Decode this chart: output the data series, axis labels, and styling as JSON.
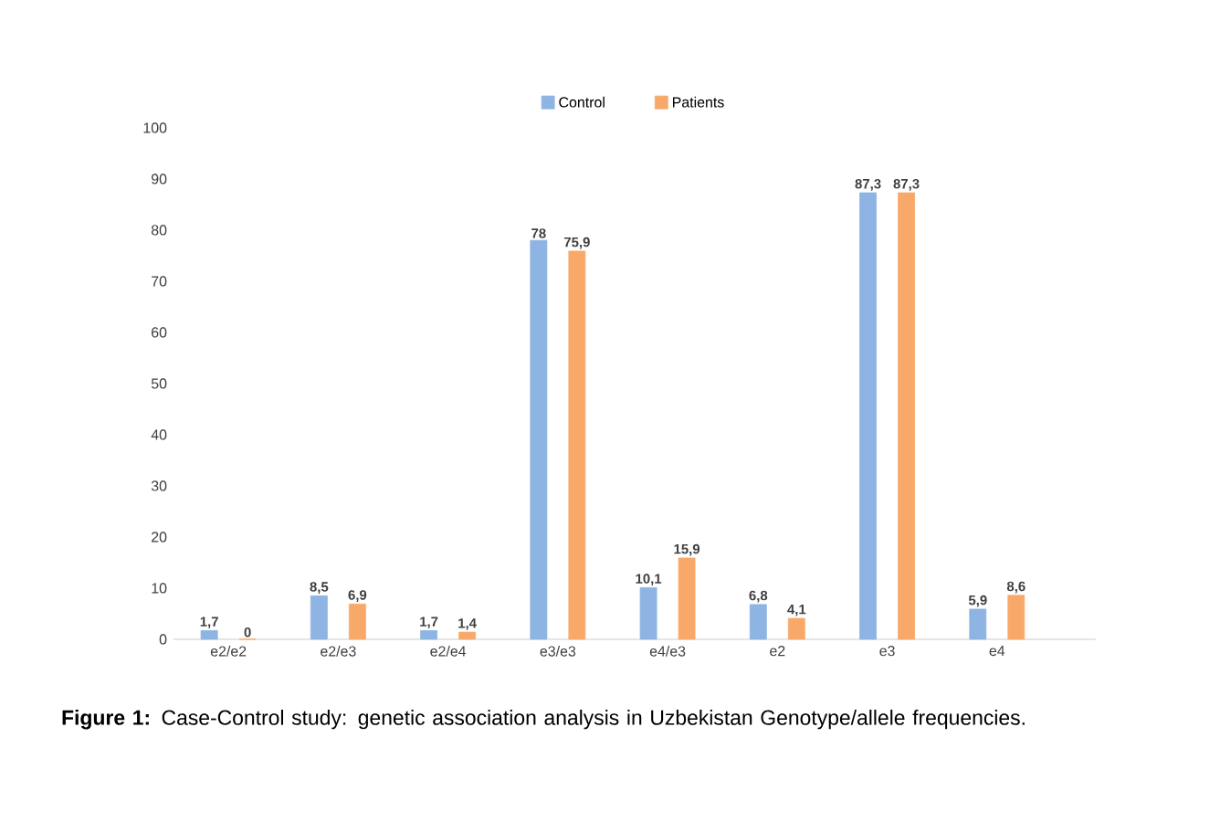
{
  "chart_data": {
    "type": "bar",
    "categories": [
      "e2/e2",
      "e2/e3",
      "e2/e4",
      "e3/e3",
      "e4/e3",
      "e2",
      "e3",
      "e4"
    ],
    "series": [
      {
        "name": "Control",
        "color": "#8db4e2",
        "values": [
          1.7,
          8.5,
          1.7,
          78,
          10.1,
          6.8,
          87.3,
          5.9
        ],
        "value_labels": [
          "1,7",
          "8,5",
          "1,7",
          "78",
          "10,1",
          "6,8",
          "87,3",
          "5,9"
        ]
      },
      {
        "name": "Patients",
        "color": "#f8a96a",
        "values": [
          0,
          6.9,
          1.4,
          75.9,
          15.9,
          4.1,
          87.3,
          8.6
        ],
        "value_labels": [
          "0",
          "6,9",
          "1,4",
          "75,9",
          "15,9",
          "4,1",
          "87,3",
          "8,6"
        ]
      }
    ],
    "ylim": [
      0,
      100
    ],
    "yticks": [
      0,
      10,
      20,
      30,
      40,
      50,
      60,
      70,
      80,
      90,
      100
    ],
    "legend": "top",
    "annotations": [
      "**Figure 1:** Case-Control study: genetic association analysis in Uzbekistan Genotype/allele frequencies."
    ]
  }
}
